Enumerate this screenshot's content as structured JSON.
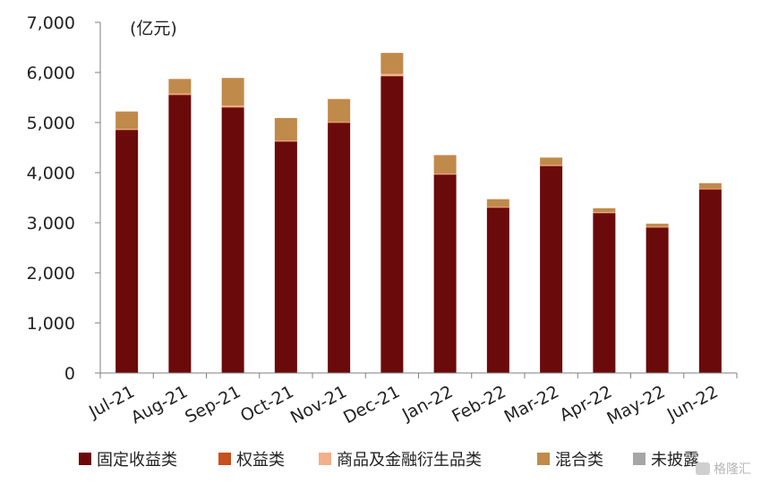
{
  "chart_data": {
    "type": "bar",
    "stacked": true,
    "unit_label": "(亿元)",
    "categories": [
      "Jul-21",
      "Aug-21",
      "Sep-21",
      "Oct-21",
      "Nov-21",
      "Dec-21",
      "Jan-22",
      "Feb-22",
      "Mar-22",
      "Apr-22",
      "May-22",
      "Jun-22"
    ],
    "y_ticks": [
      "0",
      "1,000",
      "2,000",
      "3,000",
      "4,000",
      "5,000",
      "6,000",
      "7,000"
    ],
    "ylim": [
      0,
      7000
    ],
    "grid": false,
    "legend_position": "bottom",
    "series": [
      {
        "name": "固定收益类",
        "color": "#6b0a0a",
        "values": [
          4850,
          5550,
          5300,
          4620,
          4990,
          5920,
          3960,
          3300,
          4130,
          3190,
          2900,
          3660
        ]
      },
      {
        "name": "权益类",
        "color": "#c8501e",
        "values": [
          10,
          10,
          10,
          10,
          10,
          10,
          10,
          10,
          10,
          10,
          10,
          10
        ]
      },
      {
        "name": "商品及金融衍生品类",
        "color": "#f2b08a",
        "values": [
          10,
          20,
          30,
          10,
          10,
          40,
          10,
          10,
          10,
          10,
          10,
          10
        ]
      },
      {
        "name": "混合类",
        "color": "#c08a4b",
        "values": [
          350,
          290,
          550,
          450,
          460,
          420,
          370,
          150,
          150,
          80,
          60,
          110
        ]
      },
      {
        "name": "未披露",
        "color": "#a6a6a6",
        "values": [
          0,
          0,
          0,
          0,
          0,
          0,
          0,
          0,
          0,
          0,
          0,
          0
        ]
      }
    ]
  },
  "watermark": {
    "text": "格隆汇"
  }
}
